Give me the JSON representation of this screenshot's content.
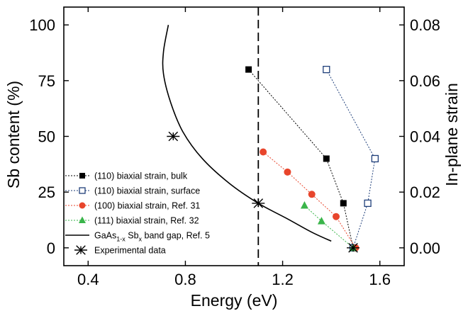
{
  "chart_data": {
    "type": "scatter",
    "xlabel": "Energy (eV)",
    "ylabel_left": "Sb content (%)",
    "ylabel_right": "In-plane  strain",
    "xlim": [
      0.3,
      1.7
    ],
    "ylim_left": [
      -8,
      108
    ],
    "ylim_right": [
      -0.0064,
      0.0864
    ],
    "x_ticks": [
      "0.4",
      "0.8",
      "1.2",
      "1.6"
    ],
    "y_left_ticks": [
      "0",
      "25",
      "50",
      "75",
      "100"
    ],
    "y_right_ticks": [
      "0.00",
      "0.02",
      "0.04",
      "0.06",
      "0.08"
    ],
    "dashed_vline_x": 1.1,
    "legend_position": "lower-left",
    "series": [
      {
        "name": "(110) biaxial strain, bulk",
        "marker": "filled-square",
        "line": "dotted",
        "color": "#000000",
        "points": [
          [
            1.06,
            80
          ],
          [
            1.38,
            40
          ],
          [
            1.45,
            20
          ],
          [
            1.49,
            0
          ]
        ]
      },
      {
        "name": "(110) biaxial strain, surface",
        "marker": "open-square",
        "line": "dotted",
        "color": "#1f3f7a",
        "points": [
          [
            1.38,
            80
          ],
          [
            1.58,
            40
          ],
          [
            1.55,
            20
          ],
          [
            1.49,
            0
          ]
        ]
      },
      {
        "name": "(100) biaxial strain, Ref. 31",
        "marker": "filled-circle",
        "line": "dotted",
        "color": "#e8452c",
        "points": [
          [
            1.12,
            43
          ],
          [
            1.22,
            34
          ],
          [
            1.32,
            24
          ],
          [
            1.42,
            14
          ],
          [
            1.5,
            0
          ]
        ]
      },
      {
        "name": "(111) biaxial strain, Ref. 32",
        "marker": "filled-triangle",
        "line": "dotted",
        "color": "#3ab54a",
        "points": [
          [
            1.29,
            19
          ],
          [
            1.36,
            12
          ],
          [
            1.49,
            0
          ]
        ]
      },
      {
        "name_parts": [
          "GaAs",
          "1-x",
          " Sb",
          "x",
          " band gap, Ref. 5"
        ],
        "marker": "none",
        "line": "solid",
        "color": "#000000",
        "curve": [
          [
            0.73,
            100
          ],
          [
            0.71,
            88
          ],
          [
            0.71,
            78
          ],
          [
            0.74,
            65
          ],
          [
            0.79,
            52
          ],
          [
            0.87,
            40
          ],
          [
            0.98,
            29
          ],
          [
            1.1,
            20
          ],
          [
            1.22,
            13
          ],
          [
            1.32,
            7
          ],
          [
            1.4,
            3
          ]
        ]
      },
      {
        "name": "Experimental data",
        "marker": "asterisk",
        "line": "none",
        "color": "#000000",
        "points": [
          [
            0.75,
            50
          ],
          [
            1.1,
            20
          ],
          [
            1.49,
            0
          ]
        ]
      }
    ]
  }
}
